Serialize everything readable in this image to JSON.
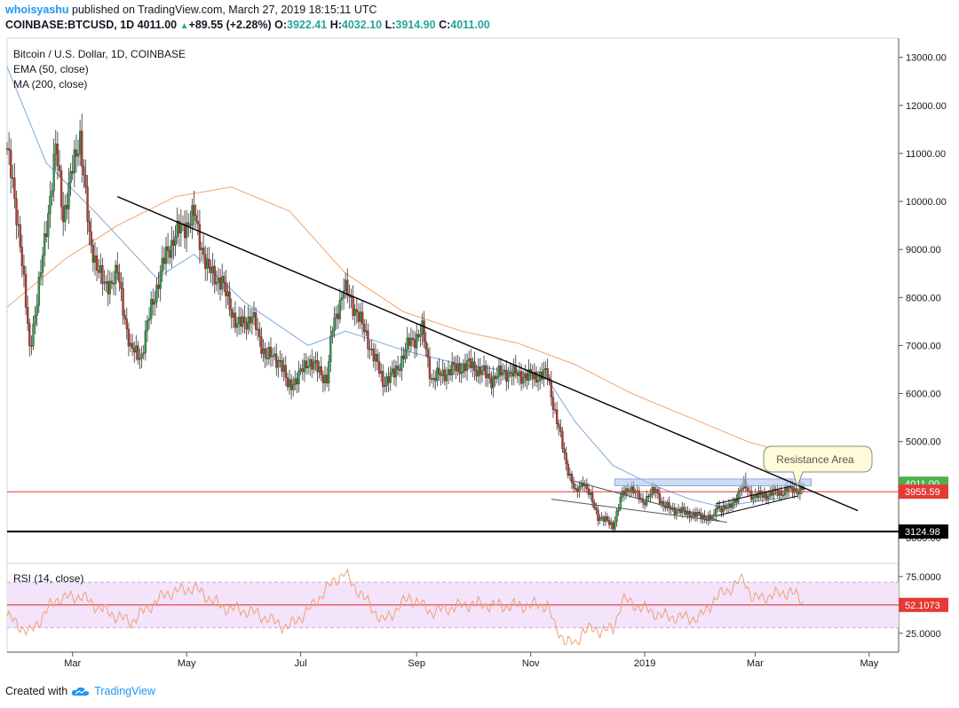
{
  "header": {
    "author": "whoisyashu",
    "published": "published on TradingView.com, March 27, 2019 18:15:11 UTC",
    "symbol": "COINBASE:BTCUSD, 1D",
    "last": "4011.00",
    "change_arrow": "▲",
    "change": "+89.55 (+2.28%)",
    "o_label": "O:",
    "o": "3922.41",
    "h_label": "H:",
    "h": "4032.10",
    "l_label": "L:",
    "l": "3914.90",
    "c_label": "C:",
    "c": "4011.00"
  },
  "legend": {
    "title": "Bitcoin / U.S. Dollar, 1D, COINBASE",
    "ema": "EMA (50, close)",
    "ma": "MA (200, close)",
    "rsi": "RSI (14, close)"
  },
  "annotation": {
    "resistance": "Resistance Area"
  },
  "footer": {
    "created": "Created with",
    "brand": "TradingView"
  },
  "colors": {
    "up": "#26a69a",
    "down": "#ef5350",
    "candle_up_fill": "#2e9e4a",
    "candle_down_fill": "#c0392b",
    "ema": "#7fa7d8",
    "ma": "#f4a36b",
    "rsi": "#f0a070",
    "rsi_band": "#f3e3fb",
    "support_red": "#e53935",
    "support_black": "#000000",
    "resistance_zone": "#aec4ec"
  },
  "chart_data": {
    "type": "candlestick",
    "x_ticks": [
      "Mar",
      "May",
      "Jul",
      "Sep",
      "Nov",
      "2019",
      "Mar",
      "May"
    ],
    "y_ticks": [
      "13000.00",
      "12000.00",
      "11000.00",
      "10000.00",
      "9000.00",
      "8000.00",
      "7000.00",
      "6000.00",
      "5000.00",
      "3000.00"
    ],
    "ylim": [
      2500,
      13400
    ],
    "price_labels": [
      {
        "value": 4011.0,
        "text": "4011.00",
        "kind": "last"
      },
      {
        "value": 3955.59,
        "text": "3955.59",
        "kind": "support"
      },
      {
        "value": 3124.98,
        "text": "3124.98",
        "kind": "floor"
      }
    ],
    "close_path": [
      [
        "2018-01-25",
        11100
      ],
      [
        "2018-02-01",
        9200
      ],
      [
        "2018-02-06",
        6900
      ],
      [
        "2018-02-12",
        8500
      ],
      [
        "2018-02-20",
        11100
      ],
      [
        "2018-02-24",
        9700
      ],
      [
        "2018-03-05",
        11400
      ],
      [
        "2018-03-10",
        9200
      ],
      [
        "2018-03-18",
        8200
      ],
      [
        "2018-03-25",
        8500
      ],
      [
        "2018-04-01",
        6900
      ],
      [
        "2018-04-07",
        6800
      ],
      [
        "2018-04-12",
        7800
      ],
      [
        "2018-04-20",
        8900
      ],
      [
        "2018-04-25",
        9300
      ],
      [
        "2018-05-05",
        9700
      ],
      [
        "2018-05-12",
        8600
      ],
      [
        "2018-05-20",
        8300
      ],
      [
        "2018-05-28",
        7400
      ],
      [
        "2018-06-05",
        7600
      ],
      [
        "2018-06-12",
        6800
      ],
      [
        "2018-06-20",
        6700
      ],
      [
        "2018-06-24",
        6150
      ],
      [
        "2018-06-30",
        6350
      ],
      [
        "2018-07-05",
        6700
      ],
      [
        "2018-07-15",
        6300
      ],
      [
        "2018-07-18",
        7350
      ],
      [
        "2018-07-24",
        8200
      ],
      [
        "2018-07-31",
        7700
      ],
      [
        "2018-08-07",
        7000
      ],
      [
        "2018-08-14",
        6250
      ],
      [
        "2018-08-20",
        6400
      ],
      [
        "2018-08-28",
        7050
      ],
      [
        "2018-09-04",
        7300
      ],
      [
        "2018-09-09",
        6300
      ],
      [
        "2018-09-20",
        6500
      ],
      [
        "2018-09-30",
        6600
      ],
      [
        "2018-10-11",
        6300
      ],
      [
        "2018-10-18",
        6450
      ],
      [
        "2018-10-31",
        6350
      ],
      [
        "2018-11-10",
        6400
      ],
      [
        "2018-11-14",
        5600
      ],
      [
        "2018-11-20",
        4550
      ],
      [
        "2018-11-25",
        3900
      ],
      [
        "2018-11-29",
        4200
      ],
      [
        "2018-12-07",
        3450
      ],
      [
        "2018-12-15",
        3250
      ],
      [
        "2018-12-20",
        3900
      ],
      [
        "2018-12-24",
        4050
      ],
      [
        "2018-12-31",
        3750
      ],
      [
        "2019-01-07",
        4000
      ],
      [
        "2019-01-11",
        3650
      ],
      [
        "2019-01-20",
        3550
      ],
      [
        "2019-01-30",
        3450
      ],
      [
        "2019-02-07",
        3400
      ],
      [
        "2019-02-08",
        3650
      ],
      [
        "2019-02-15",
        3600
      ],
      [
        "2019-02-23",
        4100
      ],
      [
        "2019-02-28",
        3850
      ],
      [
        "2019-03-10",
        3920
      ],
      [
        "2019-03-15",
        3950
      ],
      [
        "2019-03-20",
        4000
      ],
      [
        "2019-03-27",
        4011
      ]
    ],
    "ema_50": [
      [
        "2018-01-25",
        12800
      ],
      [
        "2018-02-15",
        10800
      ],
      [
        "2018-03-15",
        9700
      ],
      [
        "2018-04-15",
        8400
      ],
      [
        "2018-05-05",
        8900
      ],
      [
        "2018-06-01",
        7900
      ],
      [
        "2018-07-05",
        7000
      ],
      [
        "2018-07-25",
        7300
      ],
      [
        "2018-08-25",
        6900
      ],
      [
        "2018-09-25",
        6600
      ],
      [
        "2018-10-25",
        6450
      ],
      [
        "2018-11-10",
        6300
      ],
      [
        "2018-11-25",
        5400
      ],
      [
        "2018-12-15",
        4500
      ],
      [
        "2019-01-05",
        4100
      ],
      [
        "2019-01-25",
        3800
      ],
      [
        "2019-02-10",
        3650
      ],
      [
        "2019-03-01",
        3750
      ],
      [
        "2019-03-15",
        3820
      ]
    ],
    "ma_200": [
      [
        "2018-01-25",
        7800
      ],
      [
        "2018-02-25",
        8800
      ],
      [
        "2018-03-25",
        9500
      ],
      [
        "2018-04-25",
        10100
      ],
      [
        "2018-05-25",
        10300
      ],
      [
        "2018-06-25",
        9800
      ],
      [
        "2018-07-25",
        8500
      ],
      [
        "2018-08-25",
        7700
      ],
      [
        "2018-09-25",
        7300
      ],
      [
        "2018-10-25",
        7050
      ],
      [
        "2018-11-25",
        6600
      ],
      [
        "2018-12-25",
        6000
      ],
      [
        "2019-01-25",
        5500
      ],
      [
        "2019-02-25",
        5000
      ],
      [
        "2019-03-15",
        4800
      ]
    ],
    "rsi": {
      "ticks": [
        "75.0000",
        "25.0000"
      ],
      "last": "52.1073",
      "ylim": [
        10,
        85
      ],
      "band": [
        30,
        70
      ],
      "midline": 50,
      "path": [
        [
          "2018-01-25",
          40
        ],
        [
          "2018-02-06",
          25
        ],
        [
          "2018-02-20",
          55
        ],
        [
          "2018-03-05",
          58
        ],
        [
          "2018-03-18",
          45
        ],
        [
          "2018-04-01",
          35
        ],
        [
          "2018-04-20",
          60
        ],
        [
          "2018-05-05",
          65
        ],
        [
          "2018-05-20",
          48
        ],
        [
          "2018-06-05",
          44
        ],
        [
          "2018-06-24",
          30
        ],
        [
          "2018-07-05",
          45
        ],
        [
          "2018-07-18",
          70
        ],
        [
          "2018-07-24",
          78
        ],
        [
          "2018-08-07",
          50
        ],
        [
          "2018-08-14",
          35
        ],
        [
          "2018-08-28",
          57
        ],
        [
          "2018-09-09",
          44
        ],
        [
          "2018-09-30",
          51
        ],
        [
          "2018-10-18",
          49
        ],
        [
          "2018-11-10",
          50
        ],
        [
          "2018-11-14",
          30
        ],
        [
          "2018-11-20",
          18
        ],
        [
          "2018-11-25",
          15
        ],
        [
          "2018-11-29",
          28
        ],
        [
          "2018-12-15",
          28
        ],
        [
          "2018-12-20",
          55
        ],
        [
          "2018-12-31",
          47
        ],
        [
          "2019-01-11",
          40
        ],
        [
          "2019-01-30",
          38
        ],
        [
          "2019-02-08",
          56
        ],
        [
          "2019-02-23",
          73
        ],
        [
          "2019-02-28",
          55
        ],
        [
          "2019-03-15",
          60
        ],
        [
          "2019-03-20",
          62
        ],
        [
          "2019-03-27",
          52
        ]
      ]
    },
    "trendlines": [
      {
        "name": "main-downtrend",
        "from": [
          "2018-03-25",
          10100
        ],
        "to": [
          "2019-04-25",
          3560
        ],
        "color": "#000000"
      },
      {
        "name": "wedge-top",
        "from": [
          "2018-11-22",
          4200
        ],
        "to": [
          "2019-02-10",
          3350
        ],
        "color": "#555555"
      },
      {
        "name": "wedge-bottom",
        "from": [
          "2018-11-12",
          3800
        ],
        "to": [
          "2019-02-14",
          3320
        ],
        "color": "#555555"
      },
      {
        "name": "channel-top",
        "from": [
          "2019-02-08",
          3700
        ],
        "to": [
          "2019-03-20",
          4070
        ],
        "color": "#000000"
      },
      {
        "name": "channel-bottom",
        "from": [
          "2019-02-08",
          3450
        ],
        "to": [
          "2019-03-24",
          3870
        ],
        "color": "#000000"
      }
    ],
    "resistance_zone": {
      "from": "2018-12-16",
      "to": "2019-03-31",
      "low": 4080,
      "high": 4220
    }
  }
}
